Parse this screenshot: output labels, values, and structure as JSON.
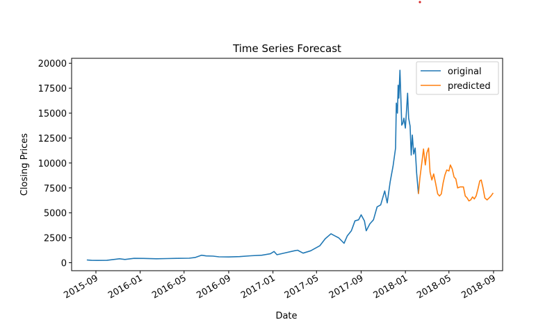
{
  "chart_data": {
    "type": "line",
    "title": "Time Series Forecast",
    "xlabel": "Date",
    "ylabel": "Closing Prices",
    "xlim": [
      "2015-06-26",
      "2018-09-26"
    ],
    "ylim": [
      -800,
      20500
    ],
    "x_ticks": [
      "2015-09",
      "2016-01",
      "2016-05",
      "2016-09",
      "2017-01",
      "2017-05",
      "2017-09",
      "2018-01",
      "2018-05",
      "2018-09"
    ],
    "y_ticks": [
      0,
      2500,
      5000,
      7500,
      10000,
      12500,
      15000,
      17500,
      20000
    ],
    "y_tick_labels": [
      "0",
      "2500",
      "5000",
      "7500",
      "10000",
      "12500",
      "15000",
      "17500",
      "20000"
    ],
    "grid": false,
    "legend_position": "top-right",
    "series": [
      {
        "name": "original",
        "color": "#1f77b4",
        "points": [
          [
            "2015-08-07",
            280
          ],
          [
            "2015-08-20",
            240
          ],
          [
            "2015-09-05",
            230
          ],
          [
            "2015-10-01",
            240
          ],
          [
            "2015-11-05",
            400
          ],
          [
            "2015-11-20",
            330
          ],
          [
            "2015-12-15",
            440
          ],
          [
            "2016-01-10",
            430
          ],
          [
            "2016-02-15",
            400
          ],
          [
            "2016-03-15",
            415
          ],
          [
            "2016-04-15",
            440
          ],
          [
            "2016-05-15",
            450
          ],
          [
            "2016-06-01",
            530
          ],
          [
            "2016-06-18",
            750
          ],
          [
            "2016-07-01",
            680
          ],
          [
            "2016-07-20",
            660
          ],
          [
            "2016-08-05",
            590
          ],
          [
            "2016-09-01",
            580
          ],
          [
            "2016-10-01",
            610
          ],
          [
            "2016-11-01",
            700
          ],
          [
            "2016-12-01",
            750
          ],
          [
            "2016-12-25",
            900
          ],
          [
            "2017-01-04",
            1130
          ],
          [
            "2017-01-12",
            800
          ],
          [
            "2017-02-01",
            970
          ],
          [
            "2017-03-01",
            1200
          ],
          [
            "2017-03-10",
            1250
          ],
          [
            "2017-03-25",
            960
          ],
          [
            "2017-04-15",
            1200
          ],
          [
            "2017-05-10",
            1700
          ],
          [
            "2017-05-25",
            2400
          ],
          [
            "2017-06-10",
            2900
          ],
          [
            "2017-06-20",
            2700
          ],
          [
            "2017-07-01",
            2500
          ],
          [
            "2017-07-16",
            1950
          ],
          [
            "2017-07-25",
            2700
          ],
          [
            "2017-08-05",
            3200
          ],
          [
            "2017-08-15",
            4200
          ],
          [
            "2017-08-25",
            4300
          ],
          [
            "2017-09-01",
            4800
          ],
          [
            "2017-09-10",
            4200
          ],
          [
            "2017-09-15",
            3200
          ],
          [
            "2017-09-25",
            3900
          ],
          [
            "2017-10-05",
            4300
          ],
          [
            "2017-10-15",
            5600
          ],
          [
            "2017-10-25",
            5800
          ],
          [
            "2017-11-05",
            7200
          ],
          [
            "2017-11-12",
            6000
          ],
          [
            "2017-11-20",
            8100
          ],
          [
            "2017-11-28",
            9700
          ],
          [
            "2017-12-05",
            11500
          ],
          [
            "2017-12-07",
            16000
          ],
          [
            "2017-12-10",
            15000
          ],
          [
            "2017-12-12",
            17800
          ],
          [
            "2017-12-14",
            16500
          ],
          [
            "2017-12-17",
            19300
          ],
          [
            "2017-12-19",
            17000
          ],
          [
            "2017-12-22",
            13800
          ],
          [
            "2017-12-25",
            14000
          ],
          [
            "2017-12-28",
            14500
          ],
          [
            "2018-01-01",
            13500
          ],
          [
            "2018-01-04",
            15200
          ],
          [
            "2018-01-07",
            17000
          ],
          [
            "2018-01-10",
            14500
          ],
          [
            "2018-01-14",
            13700
          ],
          [
            "2018-01-17",
            10800
          ],
          [
            "2018-01-20",
            12800
          ],
          [
            "2018-01-24",
            10900
          ],
          [
            "2018-01-28",
            11500
          ],
          [
            "2018-02-01",
            9000
          ],
          [
            "2018-02-06",
            6900
          ]
        ]
      },
      {
        "name": "predicted",
        "color": "#ff7f0e",
        "points": [
          [
            "2018-02-06",
            6900
          ],
          [
            "2018-02-10",
            8500
          ],
          [
            "2018-02-16",
            10200
          ],
          [
            "2018-02-20",
            11400
          ],
          [
            "2018-02-25",
            9800
          ],
          [
            "2018-03-01",
            11000
          ],
          [
            "2018-03-06",
            11500
          ],
          [
            "2018-03-10",
            9100
          ],
          [
            "2018-03-15",
            8300
          ],
          [
            "2018-03-20",
            8900
          ],
          [
            "2018-03-25",
            8000
          ],
          [
            "2018-03-31",
            6900
          ],
          [
            "2018-04-05",
            6700
          ],
          [
            "2018-04-10",
            6900
          ],
          [
            "2018-04-15",
            8000
          ],
          [
            "2018-04-20",
            8800
          ],
          [
            "2018-04-25",
            9300
          ],
          [
            "2018-05-01",
            9200
          ],
          [
            "2018-05-05",
            9800
          ],
          [
            "2018-05-10",
            9400
          ],
          [
            "2018-05-15",
            8600
          ],
          [
            "2018-05-20",
            8400
          ],
          [
            "2018-05-25",
            7500
          ],
          [
            "2018-06-01",
            7600
          ],
          [
            "2018-06-10",
            7600
          ],
          [
            "2018-06-15",
            6700
          ],
          [
            "2018-06-20",
            6500
          ],
          [
            "2018-06-25",
            6200
          ],
          [
            "2018-06-30",
            6300
          ],
          [
            "2018-07-05",
            6600
          ],
          [
            "2018-07-10",
            6400
          ],
          [
            "2018-07-15",
            6700
          ],
          [
            "2018-07-20",
            7400
          ],
          [
            "2018-07-25",
            8200
          ],
          [
            "2018-07-29",
            8300
          ],
          [
            "2018-08-03",
            7500
          ],
          [
            "2018-08-08",
            6500
          ],
          [
            "2018-08-14",
            6300
          ],
          [
            "2018-08-20",
            6500
          ],
          [
            "2018-08-25",
            6700
          ],
          [
            "2018-08-31",
            7000
          ]
        ]
      }
    ]
  }
}
